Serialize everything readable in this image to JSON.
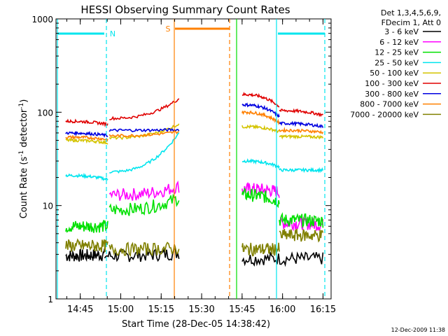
{
  "chart_data": {
    "type": "line",
    "title": "HESSI Observing Summary Count Rates",
    "xlabel": "Start Time (28-Dec-05 14:38:42)",
    "ylabel_main": "Count Rate (s",
    "ylabel_sup1": "-1",
    "ylabel_mid": " detector",
    "ylabel_sup2": "-1",
    "ylabel_end": ")",
    "yscale": "log",
    "ylim": [
      1,
      1000
    ],
    "xlim_minutes": [
      14.6,
      16.3
    ],
    "x_ticks": [
      "14:45",
      "15:00",
      "15:15",
      "15:30",
      "15:45",
      "16:00",
      "16:15"
    ],
    "y_ticks": [
      "1",
      "10",
      "100",
      "1000"
    ],
    "legend": {
      "header1": "Det 1,3,4,5,6,9,",
      "header2": "FDecim 1, Att 0",
      "entries": [
        {
          "label": "3 - 6 keV",
          "color": "#000000"
        },
        {
          "label": "6 - 12 keV",
          "color": "#ff00ff"
        },
        {
          "label": "12 - 25 keV",
          "color": "#00e000"
        },
        {
          "label": "25 - 50 keV",
          "color": "#00e5ee"
        },
        {
          "label": "50 - 100 keV",
          "color": "#d4c400"
        },
        {
          "label": "100 - 300 keV",
          "color": "#e00000"
        },
        {
          "label": "300 - 800 keV",
          "color": "#0000e0"
        },
        {
          "label": "800 - 7000 keV",
          "color": "#ff8000"
        },
        {
          "label": "7000 - 20000 keV",
          "color": "#808000"
        }
      ]
    },
    "markers": [
      {
        "label": "N",
        "color": "#00e5ee"
      },
      {
        "label": "S",
        "color": "#ff8000"
      }
    ],
    "series": [
      {
        "segments": [
          {
            "t": [
              14.66,
              14.9
            ],
            "v": [
              2.9,
              3.0
            ]
          },
          {
            "t": [
              14.9,
              15.36
            ],
            "v": [
              2.9,
              3.1
            ]
          },
          {
            "t": [
              15.75,
              16.25
            ],
            "v": [
              2.7,
              2.7
            ]
          }
        ]
      },
      {
        "segments": [
          {
            "t": [
              14.93,
              15.36
            ],
            "v": [
              13,
              16
            ]
          },
          {
            "t": [
              15.75,
              15.98
            ],
            "v": [
              15,
              14
            ]
          },
          {
            "t": [
              15.98,
              16.25
            ],
            "v": [
              6.5,
              6.2
            ]
          }
        ]
      },
      {
        "segments": [
          {
            "t": [
              14.66,
              14.92
            ],
            "v": [
              6,
              6
            ]
          },
          {
            "t": [
              14.93,
              15.36
            ],
            "v": [
              9,
              12
            ]
          },
          {
            "t": [
              15.75,
              15.98
            ],
            "v": [
              13,
              11
            ]
          },
          {
            "t": [
              15.98,
              16.25
            ],
            "v": [
              7,
              6.8
            ]
          }
        ]
      },
      {
        "segments": [
          {
            "t": [
              14.66,
              14.92
            ],
            "v": [
              21,
              19
            ]
          },
          {
            "t": [
              14.93,
              15.36
            ],
            "v": [
              23,
              60
            ]
          },
          {
            "t": [
              15.75,
              15.98
            ],
            "v": [
              30,
              26
            ]
          },
          {
            "t": [
              15.98,
              16.25
            ],
            "v": [
              24,
              24
            ]
          }
        ]
      },
      {
        "segments": [
          {
            "t": [
              14.66,
              14.92
            ],
            "v": [
              50,
              47
            ]
          },
          {
            "t": [
              14.93,
              15.36
            ],
            "v": [
              53,
              75
            ]
          },
          {
            "t": [
              15.75,
              15.98
            ],
            "v": [
              70,
              62
            ]
          },
          {
            "t": [
              15.98,
              16.25
            ],
            "v": [
              55,
              54
            ]
          }
        ]
      },
      {
        "segments": [
          {
            "t": [
              14.66,
              14.92
            ],
            "v": [
              80,
              74
            ]
          },
          {
            "t": [
              14.93,
              15.36
            ],
            "v": [
              86,
              140
            ]
          },
          {
            "t": [
              15.75,
              15.98
            ],
            "v": [
              155,
              115
            ]
          },
          {
            "t": [
              15.98,
              16.25
            ],
            "v": [
              104,
              93
            ]
          }
        ]
      },
      {
        "segments": [
          {
            "t": [
              14.66,
              14.92
            ],
            "v": [
              60,
              56
            ]
          },
          {
            "t": [
              14.93,
              15.36
            ],
            "v": [
              64,
              65
            ]
          },
          {
            "t": [
              15.75,
              15.98
            ],
            "v": [
              120,
              90
            ]
          },
          {
            "t": [
              15.98,
              16.25
            ],
            "v": [
              76,
              70
            ]
          }
        ]
      },
      {
        "segments": [
          {
            "t": [
              14.66,
              14.92
            ],
            "v": [
              54,
              51
            ]
          },
          {
            "t": [
              14.93,
              15.36
            ],
            "v": [
              56,
              62
            ]
          },
          {
            "t": [
              15.75,
              15.98
            ],
            "v": [
              100,
              77
            ]
          },
          {
            "t": [
              15.98,
              16.25
            ],
            "v": [
              64,
              61
            ]
          }
        ]
      },
      {
        "segments": [
          {
            "t": [
              14.66,
              14.92
            ],
            "v": [
              3.7,
              3.7
            ]
          },
          {
            "t": [
              14.93,
              15.36
            ],
            "v": [
              3.4,
              3.5
            ]
          },
          {
            "t": [
              15.75,
              15.98
            ],
            "v": [
              3.4,
              3.4
            ]
          },
          {
            "t": [
              15.98,
              16.25
            ],
            "v": [
              4.8,
              4.8
            ]
          }
        ]
      }
    ]
  },
  "footer": {
    "timestamp": "12-Dec-2009 11:38"
  }
}
